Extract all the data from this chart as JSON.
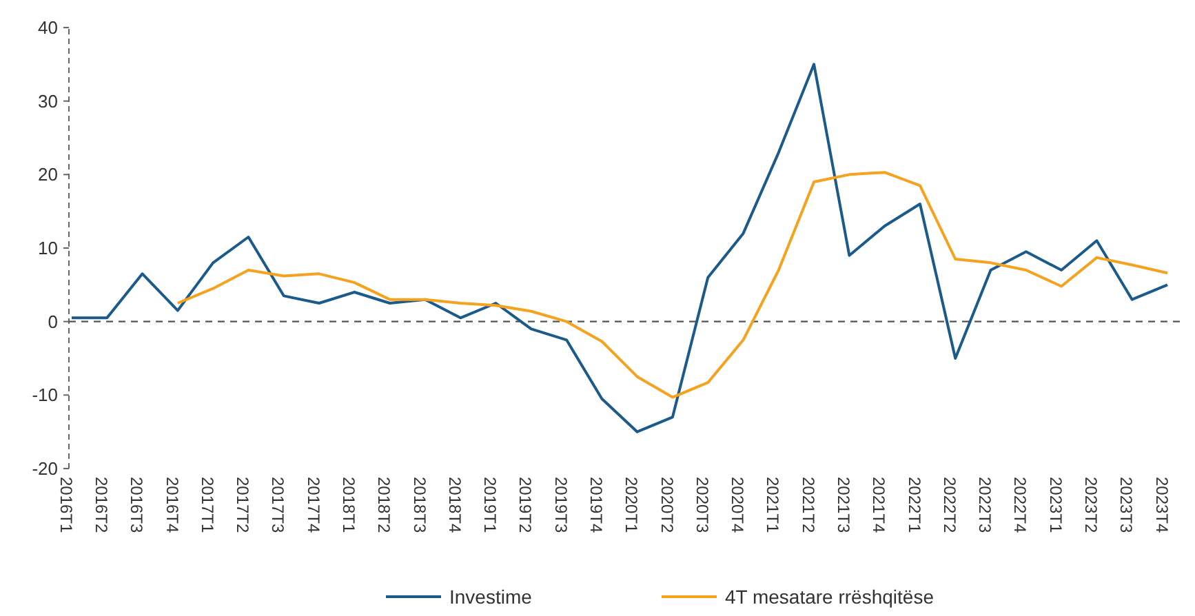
{
  "chart_data": {
    "type": "line",
    "categories": [
      "2016T1",
      "2016T2",
      "2016T3",
      "2016T4",
      "2017T1",
      "2017T2",
      "2017T3",
      "2017T4",
      "2018T1",
      "2018T2",
      "2018T3",
      "2018T4",
      "2019T1",
      "2019T2",
      "2019T3",
      "2019T4",
      "2020T1",
      "2020T2",
      "2020T3",
      "2020T4",
      "2021T1",
      "2021T2",
      "2021T3",
      "2021T4",
      "2022T1",
      "2022T2",
      "2022T3",
      "2022T4",
      "2023T1",
      "2023T2",
      "2023T3",
      "2023T4"
    ],
    "series": [
      {
        "name": "Investime",
        "color": "#1b5b8c",
        "values": [
          0.5,
          0.5,
          6.5,
          1.5,
          8,
          11.5,
          3.5,
          2.5,
          4,
          2.5,
          3,
          0.5,
          2.5,
          -1,
          -2.5,
          -10.5,
          -15,
          -13,
          6,
          12,
          23,
          35,
          9,
          13,
          16,
          -5,
          7,
          9.5,
          7,
          11,
          3,
          5
        ]
      },
      {
        "name": "4T mesatare rrëshqitëse",
        "color": "#f5a21f",
        "values": [
          null,
          null,
          null,
          2.5,
          4.5,
          7,
          6.2,
          6.5,
          5.3,
          3,
          3,
          2.5,
          2.2,
          1.4,
          0,
          -2.7,
          -7.5,
          -10.3,
          -8.3,
          -2.5,
          7,
          19,
          20,
          20.3,
          18.5,
          8.5,
          8,
          7,
          4.8,
          8.7,
          7.7,
          6.6
        ]
      }
    ],
    "ylim": [
      -20,
      40
    ],
    "yticks": [
      -20,
      -10,
      0,
      10,
      20,
      30,
      40
    ],
    "grid": false,
    "legend": "bottom",
    "ref_lines": [
      {
        "axis": "y",
        "value": 0,
        "color": "#555555",
        "line_style": "dashed"
      }
    ]
  }
}
